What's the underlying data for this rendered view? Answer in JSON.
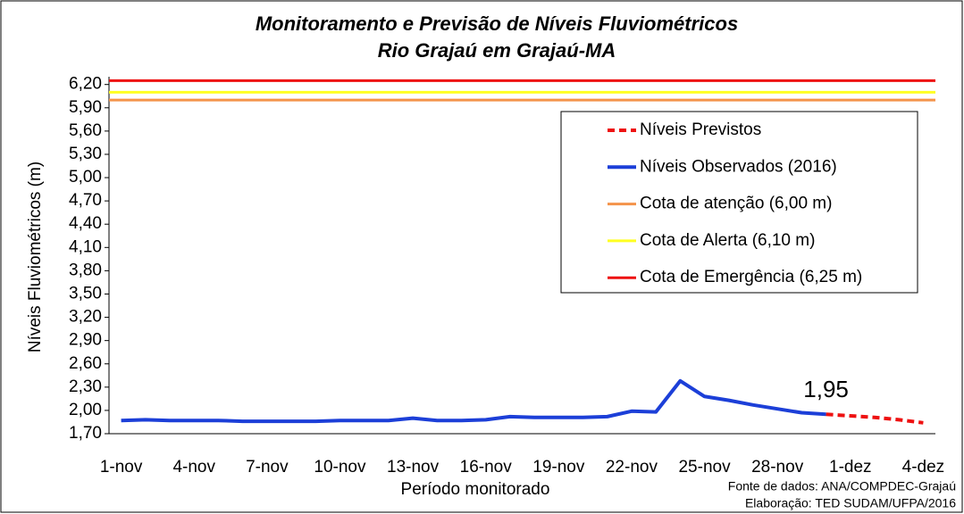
{
  "chart_data": {
    "type": "line",
    "title": "Monitoramento e Previsão de Níveis Fluviométricos",
    "subtitle": "Rio Grajaú em Grajaú-MA",
    "x_label": "Período monitorado",
    "y_label": "Níveis Fluviométricos (m)",
    "notes": [
      "Fonte de dados: ANA/COMPDEC-Grajaú",
      "Elaboração: TED SUDAM/UFPA/2016"
    ],
    "categories": [
      "1-nov",
      null,
      null,
      "4-nov",
      null,
      null,
      "7-nov",
      null,
      null,
      "10-nov",
      null,
      null,
      "13-nov",
      null,
      null,
      "16-nov",
      null,
      null,
      "19-nov",
      null,
      null,
      "22-nov",
      null,
      null,
      "25-nov",
      null,
      null,
      "28-nov",
      null,
      null,
      "1-dez",
      null,
      null,
      "4-dez"
    ],
    "series": [
      {
        "name": "Níveis Previstos",
        "color": "#ee1111",
        "dashed": true,
        "values": [
          null,
          null,
          null,
          null,
          null,
          null,
          null,
          null,
          null,
          null,
          null,
          null,
          null,
          null,
          null,
          null,
          null,
          null,
          null,
          null,
          null,
          null,
          null,
          null,
          null,
          null,
          null,
          null,
          null,
          1.95,
          1.93,
          1.91,
          1.88,
          1.84
        ]
      },
      {
        "name": "Níveis Observados (2016)",
        "color": "#1c3fd8",
        "dashed": false,
        "values": [
          1.87,
          1.88,
          1.87,
          1.87,
          1.87,
          1.86,
          1.86,
          1.86,
          1.86,
          1.87,
          1.87,
          1.87,
          1.9,
          1.87,
          1.87,
          1.88,
          1.92,
          1.91,
          1.91,
          1.91,
          1.92,
          1.99,
          1.98,
          2.38,
          2.18,
          2.13,
          2.07,
          2.02,
          1.97,
          1.95,
          null,
          null,
          null,
          null
        ],
        "value_labels": [
          null,
          null,
          null,
          null,
          null,
          null,
          null,
          null,
          null,
          null,
          null,
          null,
          null,
          null,
          null,
          null,
          null,
          null,
          null,
          null,
          null,
          null,
          null,
          null,
          null,
          null,
          null,
          null,
          null,
          "1,95",
          null,
          null,
          null,
          null
        ]
      }
    ],
    "thresholds": [
      {
        "name": "Cota de atenção (6,00 m)",
        "value": 6.0,
        "color": "#f4934a"
      },
      {
        "name": "Cota de Alerta (6,10 m)",
        "value": 6.1,
        "color": "#ffff22"
      },
      {
        "name": "Cota de Emergência (6,25 m)",
        "value": 6.25,
        "color": "#ee1111"
      }
    ],
    "ylim": [
      1.7,
      6.3
    ],
    "yticks": [
      {
        "value": 1.7,
        "label": "1,70"
      },
      {
        "value": 2.0,
        "label": "2,00"
      },
      {
        "value": 2.3,
        "label": "2,30"
      },
      {
        "value": 2.6,
        "label": "2,60"
      },
      {
        "value": 2.9,
        "label": "2,90"
      },
      {
        "value": 3.2,
        "label": "3,20"
      },
      {
        "value": 3.5,
        "label": "3,50"
      },
      {
        "value": 3.8,
        "label": "3,80"
      },
      {
        "value": 4.1,
        "label": "4,10"
      },
      {
        "value": 4.4,
        "label": "4,40"
      },
      {
        "value": 4.7,
        "label": "4,70"
      },
      {
        "value": 5.0,
        "label": "5,00"
      },
      {
        "value": 5.3,
        "label": "5,30"
      },
      {
        "value": 5.6,
        "label": "5,60"
      },
      {
        "value": 5.9,
        "label": "5,90"
      },
      {
        "value": 6.2,
        "label": "6,20"
      }
    ],
    "grid": false,
    "legend": "upper right"
  }
}
